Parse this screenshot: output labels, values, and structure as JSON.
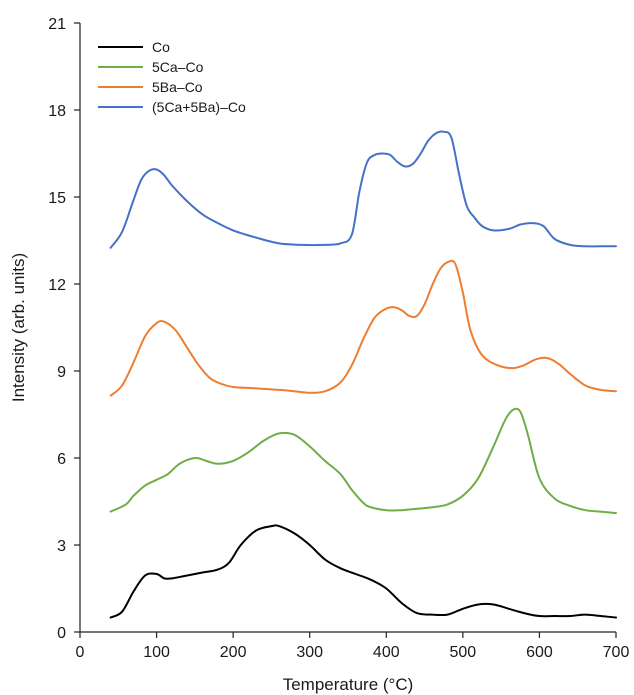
{
  "chart_data": {
    "type": "line",
    "xlabel": "Temperature (°C)",
    "ylabel": "Intensity (arb. units)",
    "xlim": [
      0,
      700
    ],
    "ylim": [
      0,
      21
    ],
    "xticks": [
      0,
      100,
      200,
      300,
      400,
      500,
      600,
      700
    ],
    "yticks": [
      0,
      3,
      6,
      9,
      12,
      15,
      18,
      21
    ],
    "grid": false,
    "legend_position": "top-left",
    "series": [
      {
        "name": "Co",
        "color": "#000000",
        "x": [
          40,
          55,
          70,
          85,
          100,
          110,
          120,
          140,
          160,
          180,
          195,
          210,
          230,
          250,
          260,
          280,
          300,
          320,
          340,
          360,
          380,
          400,
          420,
          440,
          460,
          480,
          500,
          520,
          540,
          560,
          580,
          600,
          620,
          640,
          660,
          680,
          700
        ],
        "y": [
          0.5,
          0.7,
          1.4,
          1.95,
          2.0,
          1.85,
          1.85,
          1.95,
          2.05,
          2.15,
          2.4,
          3.0,
          3.5,
          3.65,
          3.65,
          3.4,
          3.0,
          2.5,
          2.2,
          2.0,
          1.8,
          1.5,
          1.0,
          0.65,
          0.6,
          0.6,
          0.8,
          0.95,
          0.95,
          0.8,
          0.65,
          0.55,
          0.55,
          0.55,
          0.6,
          0.55,
          0.5
        ]
      },
      {
        "name": "5Ca–Co",
        "color": "#70ad47",
        "x": [
          40,
          60,
          70,
          85,
          100,
          115,
          130,
          150,
          165,
          180,
          200,
          220,
          240,
          260,
          280,
          300,
          320,
          340,
          355,
          370,
          380,
          400,
          420,
          440,
          460,
          480,
          500,
          520,
          540,
          555,
          565,
          575,
          585,
          600,
          620,
          640,
          660,
          680,
          700
        ],
        "y": [
          4.15,
          4.4,
          4.7,
          5.05,
          5.25,
          5.45,
          5.8,
          6.0,
          5.9,
          5.8,
          5.9,
          6.2,
          6.6,
          6.85,
          6.8,
          6.4,
          5.9,
          5.45,
          4.9,
          4.45,
          4.3,
          4.2,
          4.2,
          4.25,
          4.3,
          4.4,
          4.7,
          5.3,
          6.4,
          7.3,
          7.65,
          7.6,
          6.8,
          5.3,
          4.6,
          4.35,
          4.2,
          4.15,
          4.1
        ]
      },
      {
        "name": "5Ba–Co",
        "color": "#ed7d31",
        "x": [
          40,
          55,
          70,
          85,
          100,
          110,
          125,
          140,
          155,
          170,
          185,
          200,
          230,
          260,
          280,
          300,
          320,
          340,
          355,
          370,
          385,
          400,
          410,
          420,
          430,
          440,
          450,
          460,
          470,
          480,
          490,
          500,
          510,
          525,
          545,
          565,
          580,
          595,
          610,
          625,
          640,
          660,
          680,
          700
        ],
        "y": [
          8.15,
          8.5,
          9.3,
          10.2,
          10.65,
          10.7,
          10.4,
          9.8,
          9.2,
          8.75,
          8.55,
          8.45,
          8.4,
          8.35,
          8.3,
          8.25,
          8.3,
          8.6,
          9.2,
          10.1,
          10.85,
          11.15,
          11.2,
          11.1,
          10.9,
          10.9,
          11.3,
          11.95,
          12.5,
          12.75,
          12.7,
          11.7,
          10.4,
          9.55,
          9.2,
          9.1,
          9.2,
          9.4,
          9.45,
          9.25,
          8.9,
          8.5,
          8.35,
          8.3
        ]
      },
      {
        "name": "(5Ca+5Ba)–Co",
        "color": "#4472c4",
        "x": [
          40,
          55,
          70,
          80,
          90,
          100,
          110,
          120,
          140,
          160,
          180,
          200,
          230,
          260,
          290,
          320,
          340,
          355,
          365,
          375,
          385,
          395,
          405,
          415,
          425,
          435,
          445,
          455,
          465,
          475,
          485,
          495,
          505,
          515,
          525,
          540,
          560,
          575,
          590,
          605,
          620,
          640,
          660,
          680,
          700
        ],
        "y": [
          13.25,
          13.8,
          14.9,
          15.6,
          15.9,
          15.95,
          15.75,
          15.4,
          14.85,
          14.4,
          14.1,
          13.85,
          13.6,
          13.4,
          13.35,
          13.35,
          13.4,
          13.7,
          15.2,
          16.2,
          16.45,
          16.5,
          16.45,
          16.2,
          16.05,
          16.15,
          16.5,
          16.95,
          17.2,
          17.25,
          17.05,
          15.8,
          14.7,
          14.3,
          14.0,
          13.85,
          13.9,
          14.05,
          14.1,
          14.0,
          13.55,
          13.35,
          13.3,
          13.3,
          13.3
        ]
      }
    ]
  }
}
